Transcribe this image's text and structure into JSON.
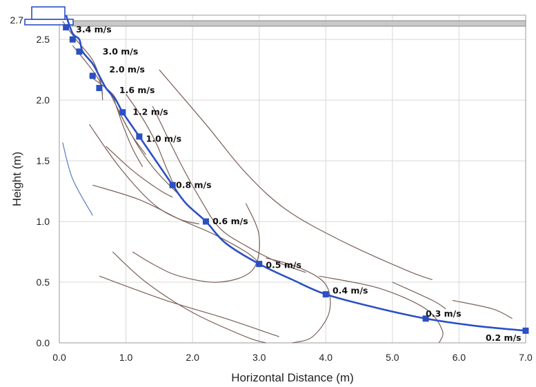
{
  "chart_data": {
    "type": "line",
    "xlabel": "Horizontal Distance (m)",
    "ylabel": "Height (m)",
    "xlim": [
      0,
      7
    ],
    "ylim": [
      0,
      2.7
    ],
    "xticks": [
      "0.0",
      "1.0",
      "2.0",
      "3.0",
      "4.0",
      "5.0",
      "6.0",
      "7.0"
    ],
    "yticks": [
      "0.0",
      "0.5",
      "1.0",
      "1.5",
      "2.0",
      "2.5"
    ],
    "top_label": "2.7",
    "grid": true,
    "colors": {
      "trajectory": "#2b4fc4",
      "contour": "#7a5f56",
      "grid": "#d8d8d8",
      "wall": "#c8c8c8"
    },
    "series": [
      {
        "x": [
          0.1,
          0.2,
          0.3,
          0.35,
          0.5,
          0.6,
          0.7,
          0.85,
          0.95,
          1.2,
          1.45,
          1.7,
          1.9,
          2.2,
          2.5,
          3.0,
          3.5,
          4.0,
          4.75,
          5.5,
          6.25,
          7.0
        ],
        "y": [
          2.7,
          2.55,
          2.5,
          2.4,
          2.3,
          2.2,
          2.1,
          2.0,
          1.9,
          1.7,
          1.5,
          1.3,
          1.15,
          1.0,
          0.82,
          0.65,
          0.52,
          0.4,
          0.29,
          0.2,
          0.14,
          0.1
        ]
      }
    ],
    "markers": [
      {
        "x": 0.1,
        "y": 2.6
      },
      {
        "x": 0.2,
        "y": 2.5
      },
      {
        "x": 0.3,
        "y": 2.4
      },
      {
        "x": 0.5,
        "y": 2.2
      },
      {
        "x": 0.6,
        "y": 2.1
      },
      {
        "x": 0.95,
        "y": 1.9
      },
      {
        "x": 1.2,
        "y": 1.7
      },
      {
        "x": 1.7,
        "y": 1.3
      },
      {
        "x": 2.2,
        "y": 1.0
      },
      {
        "x": 3.0,
        "y": 0.65
      },
      {
        "x": 4.0,
        "y": 0.4
      },
      {
        "x": 5.5,
        "y": 0.2
      },
      {
        "x": 7.0,
        "y": 0.1
      }
    ],
    "velocity_labels": [
      {
        "text": "3.4 m/s",
        "x": 0.25,
        "y": 2.58
      },
      {
        "text": "3.0 m/s",
        "x": 0.65,
        "y": 2.4
      },
      {
        "text": "2.0 m/s",
        "x": 0.75,
        "y": 2.25
      },
      {
        "text": "1.6 m/s",
        "x": 0.9,
        "y": 2.08
      },
      {
        "text": "1.2 m/s",
        "x": 1.1,
        "y": 1.9
      },
      {
        "text": "1.0 m/s",
        "x": 1.3,
        "y": 1.68
      },
      {
        "text": "0.8 m/s",
        "x": 1.75,
        "y": 1.3
      },
      {
        "text": "0.6 m/s",
        "x": 2.3,
        "y": 1.0
      },
      {
        "text": "0.5 m/s",
        "x": 3.1,
        "y": 0.64
      },
      {
        "text": "0.4 m/s",
        "x": 4.1,
        "y": 0.43
      },
      {
        "text": "0.3 m/s",
        "x": 5.5,
        "y": 0.24
      },
      {
        "text": "0.2 m/s",
        "x": 6.4,
        "y": 0.04
      }
    ],
    "contours": [
      [
        [
          0.05,
          1.65
        ],
        [
          0.2,
          1.35
        ],
        [
          0.5,
          1.05
        ]
      ],
      [
        [
          0.05,
          2.65
        ],
        [
          0.25,
          2.5
        ],
        [
          0.5,
          2.33
        ],
        [
          0.62,
          2.15
        ],
        [
          0.65,
          2.0
        ]
      ],
      [
        [
          0.2,
          2.45
        ],
        [
          0.45,
          2.28
        ],
        [
          0.6,
          2.16
        ],
        [
          0.65,
          2.05
        ]
      ],
      [
        [
          0.45,
          2.2
        ],
        [
          0.8,
          2.05
        ],
        [
          0.95,
          1.88
        ]
      ],
      [
        [
          0.75,
          2.07
        ],
        [
          0.95,
          1.85
        ],
        [
          1.1,
          1.7
        ],
        [
          1.3,
          1.55
        ]
      ],
      [
        [
          0.8,
          2.04
        ],
        [
          0.95,
          1.8
        ],
        [
          1.1,
          1.6
        ],
        [
          1.25,
          1.45
        ]
      ],
      [
        [
          1.0,
          2.05
        ],
        [
          1.25,
          1.85
        ],
        [
          1.45,
          1.65
        ],
        [
          1.6,
          1.45
        ],
        [
          1.72,
          1.3
        ]
      ],
      [
        [
          0.85,
          1.95
        ],
        [
          1.15,
          1.65
        ],
        [
          1.4,
          1.45
        ],
        [
          1.65,
          1.3
        ],
        [
          1.8,
          1.22
        ]
      ],
      [
        [
          0.45,
          1.8
        ],
        [
          0.9,
          1.45
        ],
        [
          1.4,
          1.15
        ],
        [
          1.8,
          1.02
        ],
        [
          2.1,
          0.98
        ]
      ],
      [
        [
          0.7,
          1.62
        ],
        [
          1.1,
          1.42
        ],
        [
          1.5,
          1.26
        ],
        [
          1.7,
          1.2
        ]
      ],
      [
        [
          0.5,
          1.3
        ],
        [
          1.2,
          1.18
        ],
        [
          1.8,
          1.02
        ],
        [
          2.3,
          0.9
        ],
        [
          2.8,
          0.75
        ],
        [
          3.0,
          0.66
        ]
      ],
      [
        [
          1.5,
          2.25
        ],
        [
          2.2,
          1.8
        ],
        [
          2.8,
          1.4
        ],
        [
          3.4,
          1.1
        ],
        [
          4.2,
          0.85
        ],
        [
          5.2,
          0.6
        ],
        [
          5.6,
          0.52
        ]
      ],
      [
        [
          1.4,
          1.95
        ],
        [
          1.8,
          1.5
        ],
        [
          2.1,
          1.2
        ],
        [
          2.4,
          0.95
        ],
        [
          2.8,
          0.8
        ],
        [
          3.3,
          0.66
        ],
        [
          3.7,
          0.58
        ]
      ],
      [
        [
          2.8,
          1.15
        ],
        [
          3.0,
          0.88
        ],
        [
          2.9,
          0.6
        ],
        [
          2.4,
          0.5
        ],
        [
          1.8,
          0.55
        ],
        [
          1.4,
          0.65
        ],
        [
          1.1,
          0.75
        ]
      ],
      [
        [
          3.1,
          0.7
        ],
        [
          3.6,
          0.62
        ],
        [
          4.0,
          0.48
        ],
        [
          4.05,
          0.25
        ],
        [
          3.8,
          0.05
        ],
        [
          3.5,
          0.0
        ]
      ],
      [
        [
          0.8,
          0.75
        ],
        [
          1.3,
          0.5
        ],
        [
          2.0,
          0.25
        ],
        [
          2.8,
          0.05
        ],
        [
          3.1,
          0.0
        ]
      ],
      [
        [
          0.6,
          0.55
        ],
        [
          1.6,
          0.35
        ],
        [
          2.5,
          0.2
        ],
        [
          3.3,
          0.05
        ]
      ],
      [
        [
          3.9,
          0.55
        ],
        [
          4.8,
          0.45
        ],
        [
          5.5,
          0.28
        ],
        [
          5.75,
          0.1
        ],
        [
          5.7,
          0.0
        ]
      ],
      [
        [
          5.0,
          0.5
        ],
        [
          5.6,
          0.35
        ],
        [
          5.8,
          0.28
        ]
      ],
      [
        [
          5.9,
          0.35
        ],
        [
          6.5,
          0.28
        ],
        [
          6.8,
          0.2
        ]
      ]
    ]
  }
}
